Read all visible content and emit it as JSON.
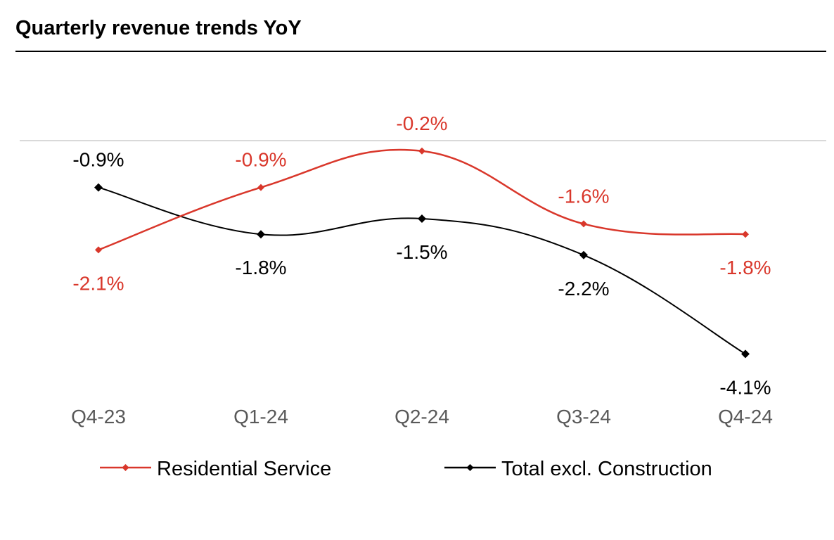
{
  "chart_data": {
    "type": "line",
    "title": "Quarterly revenue trends YoY",
    "categories": [
      "Q4-23",
      "Q1-24",
      "Q2-24",
      "Q3-24",
      "Q4-24"
    ],
    "series": [
      {
        "name": "Residential Service",
        "color": "#d9372b",
        "values": [
          -2.1,
          -0.9,
          -0.2,
          -1.6,
          -1.8
        ],
        "labels": [
          "-2.1%",
          "-0.9%",
          "-0.2%",
          "-1.6%",
          "-1.8%"
        ],
        "label_pos": [
          "below",
          "above",
          "above",
          "above",
          "below"
        ]
      },
      {
        "name": "Total excl. Construction",
        "color": "#000000",
        "values": [
          -0.9,
          -1.8,
          -1.5,
          -2.2,
          -4.1
        ],
        "labels": [
          "-0.9%",
          "-1.8%",
          "-1.5%",
          "-2.2%",
          "-4.1%"
        ],
        "label_pos": [
          "above",
          "below",
          "below",
          "below",
          "below"
        ]
      }
    ],
    "ylim": [
      -5.0,
      0.0
    ],
    "zero_line": true,
    "legend": "bottom",
    "xlabel": "",
    "ylabel": ""
  }
}
